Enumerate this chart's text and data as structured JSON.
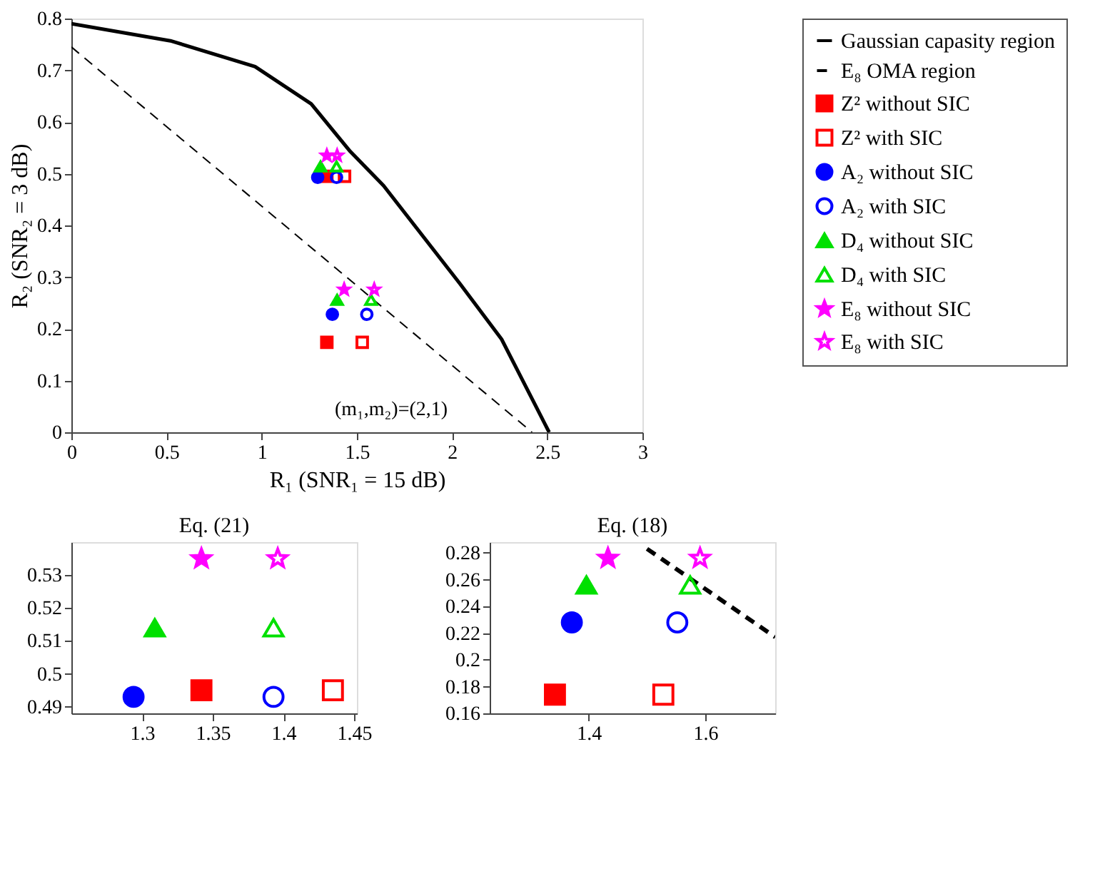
{
  "chart_data": [
    {
      "type": "scatter",
      "xlabel": "R₁ (SNR₁ = 15 dB)",
      "ylabel": "R₂ (SNR₂ = 3 dB)",
      "xlim": [
        0,
        3
      ],
      "xticks": [
        0,
        0.5,
        1,
        1.5,
        2,
        2.5,
        3
      ],
      "ylim": [
        0,
        0.8
      ],
      "yticks": [
        0,
        0.1,
        0.2,
        0.3,
        0.4,
        0.5,
        0.6,
        0.7,
        0.8
      ],
      "grid": false,
      "legend": "right",
      "annotations": [
        "(m₁,m₂)=(2,1)"
      ],
      "series": [
        {
          "name": "Gaussian capasity region",
          "type": "line",
          "line_style": "solid",
          "color": "#000000",
          "x": [
            0,
            0.52,
            0.965,
            1.26,
            1.465,
            1.64,
            2.04,
            2.26,
            2.51
          ],
          "values": [
            0.79,
            0.757,
            0.707,
            0.635,
            0.543,
            0.477,
            0.288,
            0.18,
            0
          ]
        },
        {
          "name": "E₈ OMA region",
          "type": "line",
          "line_style": "dashed",
          "color": "#000000",
          "x": [
            0,
            2.42
          ],
          "values": [
            0.745,
            0
          ]
        },
        {
          "name": "Z² without SIC",
          "marker": "square",
          "color": "#ff0000",
          "x": [
            1.342,
            1.342
          ],
          "values": [
            0.495,
            0.174
          ]
        },
        {
          "name": "Z² with SIC",
          "marker": "square-open",
          "color": "#ff0000",
          "x": [
            1.435,
            1.528
          ],
          "values": [
            0.495,
            0.174
          ]
        },
        {
          "name": "A₂ without SIC",
          "marker": "circle",
          "color": "#0000ff",
          "x": [
            1.294,
            1.371
          ],
          "values": [
            0.493,
            0.228
          ]
        },
        {
          "name": "A₂ with SIC",
          "marker": "circle-open",
          "color": "#0000ff",
          "x": [
            1.393,
            1.552
          ],
          "values": [
            0.493,
            0.228
          ]
        },
        {
          "name": "D₄ without SIC",
          "marker": "triangle",
          "color": "#00e000",
          "x": [
            1.309,
            1.396
          ],
          "values": [
            0.514,
            0.256
          ]
        },
        {
          "name": "D₄ with SIC",
          "marker": "triangle-open",
          "color": "#00e000",
          "x": [
            1.393,
            1.574
          ],
          "values": [
            0.514,
            0.256
          ]
        },
        {
          "name": "E₈ without SIC",
          "marker": "star",
          "color": "#ff00ff",
          "x": [
            1.342,
            1.433
          ],
          "values": [
            0.535,
            0.276
          ]
        },
        {
          "name": "E₈ with SIC",
          "marker": "star-open",
          "color": "#ff00ff",
          "x": [
            1.396,
            1.591
          ],
          "values": [
            0.535,
            0.276
          ]
        }
      ]
    },
    {
      "type": "scatter",
      "title": "Eq. (21)",
      "xlim": [
        1.25,
        1.452
      ],
      "xticks": [
        1.3,
        1.35,
        1.4,
        1.45
      ],
      "ylim": [
        0.488,
        0.54
      ],
      "yticks": [
        0.49,
        0.5,
        0.51,
        0.52,
        0.53
      ],
      "grid": false,
      "series": [
        {
          "marker": "square",
          "color": "#ff0000",
          "x": [
            1.342
          ],
          "values": [
            0.495
          ]
        },
        {
          "marker": "square-open",
          "color": "#ff0000",
          "x": [
            1.435
          ],
          "values": [
            0.495
          ]
        },
        {
          "marker": "circle",
          "color": "#0000ff",
          "x": [
            1.294
          ],
          "values": [
            0.493
          ]
        },
        {
          "marker": "circle-open",
          "color": "#0000ff",
          "x": [
            1.393
          ],
          "values": [
            0.493
          ]
        },
        {
          "marker": "triangle",
          "color": "#00e000",
          "x": [
            1.309
          ],
          "values": [
            0.514
          ]
        },
        {
          "marker": "triangle-open",
          "color": "#00e000",
          "x": [
            1.393
          ],
          "values": [
            0.514
          ]
        },
        {
          "marker": "star",
          "color": "#ff00ff",
          "x": [
            1.342
          ],
          "values": [
            0.535
          ]
        },
        {
          "marker": "star-open",
          "color": "#ff00ff",
          "x": [
            1.396
          ],
          "values": [
            0.535
          ]
        }
      ]
    },
    {
      "type": "scatter",
      "title": "Eq. (18)",
      "xlim": [
        1.23,
        1.72
      ],
      "xticks": [
        1.4,
        1.6
      ],
      "ylim": [
        0.16,
        0.288
      ],
      "yticks": [
        0.16,
        0.18,
        0.2,
        0.22,
        0.24,
        0.26,
        0.28
      ],
      "grid": false,
      "series": [
        {
          "type": "line",
          "line_style": "dashed",
          "color": "#000000",
          "x": [
            1.5,
            1.72
          ],
          "values": [
            0.283,
            0.217
          ]
        },
        {
          "marker": "square",
          "color": "#ff0000",
          "x": [
            1.342
          ],
          "values": [
            0.174
          ]
        },
        {
          "marker": "square-open",
          "color": "#ff0000",
          "x": [
            1.528
          ],
          "values": [
            0.174
          ]
        },
        {
          "marker": "circle",
          "color": "#0000ff",
          "x": [
            1.371
          ],
          "values": [
            0.228
          ]
        },
        {
          "marker": "circle-open",
          "color": "#0000ff",
          "x": [
            1.552
          ],
          "values": [
            0.228
          ]
        },
        {
          "marker": "triangle",
          "color": "#00e000",
          "x": [
            1.396
          ],
          "values": [
            0.256
          ]
        },
        {
          "marker": "triangle-open",
          "color": "#00e000",
          "x": [
            1.574
          ],
          "values": [
            0.256
          ]
        },
        {
          "marker": "star",
          "color": "#ff00ff",
          "x": [
            1.433
          ],
          "values": [
            0.276
          ]
        },
        {
          "marker": "star-open",
          "color": "#ff00ff",
          "x": [
            1.591
          ],
          "values": [
            0.276
          ]
        }
      ]
    }
  ]
}
